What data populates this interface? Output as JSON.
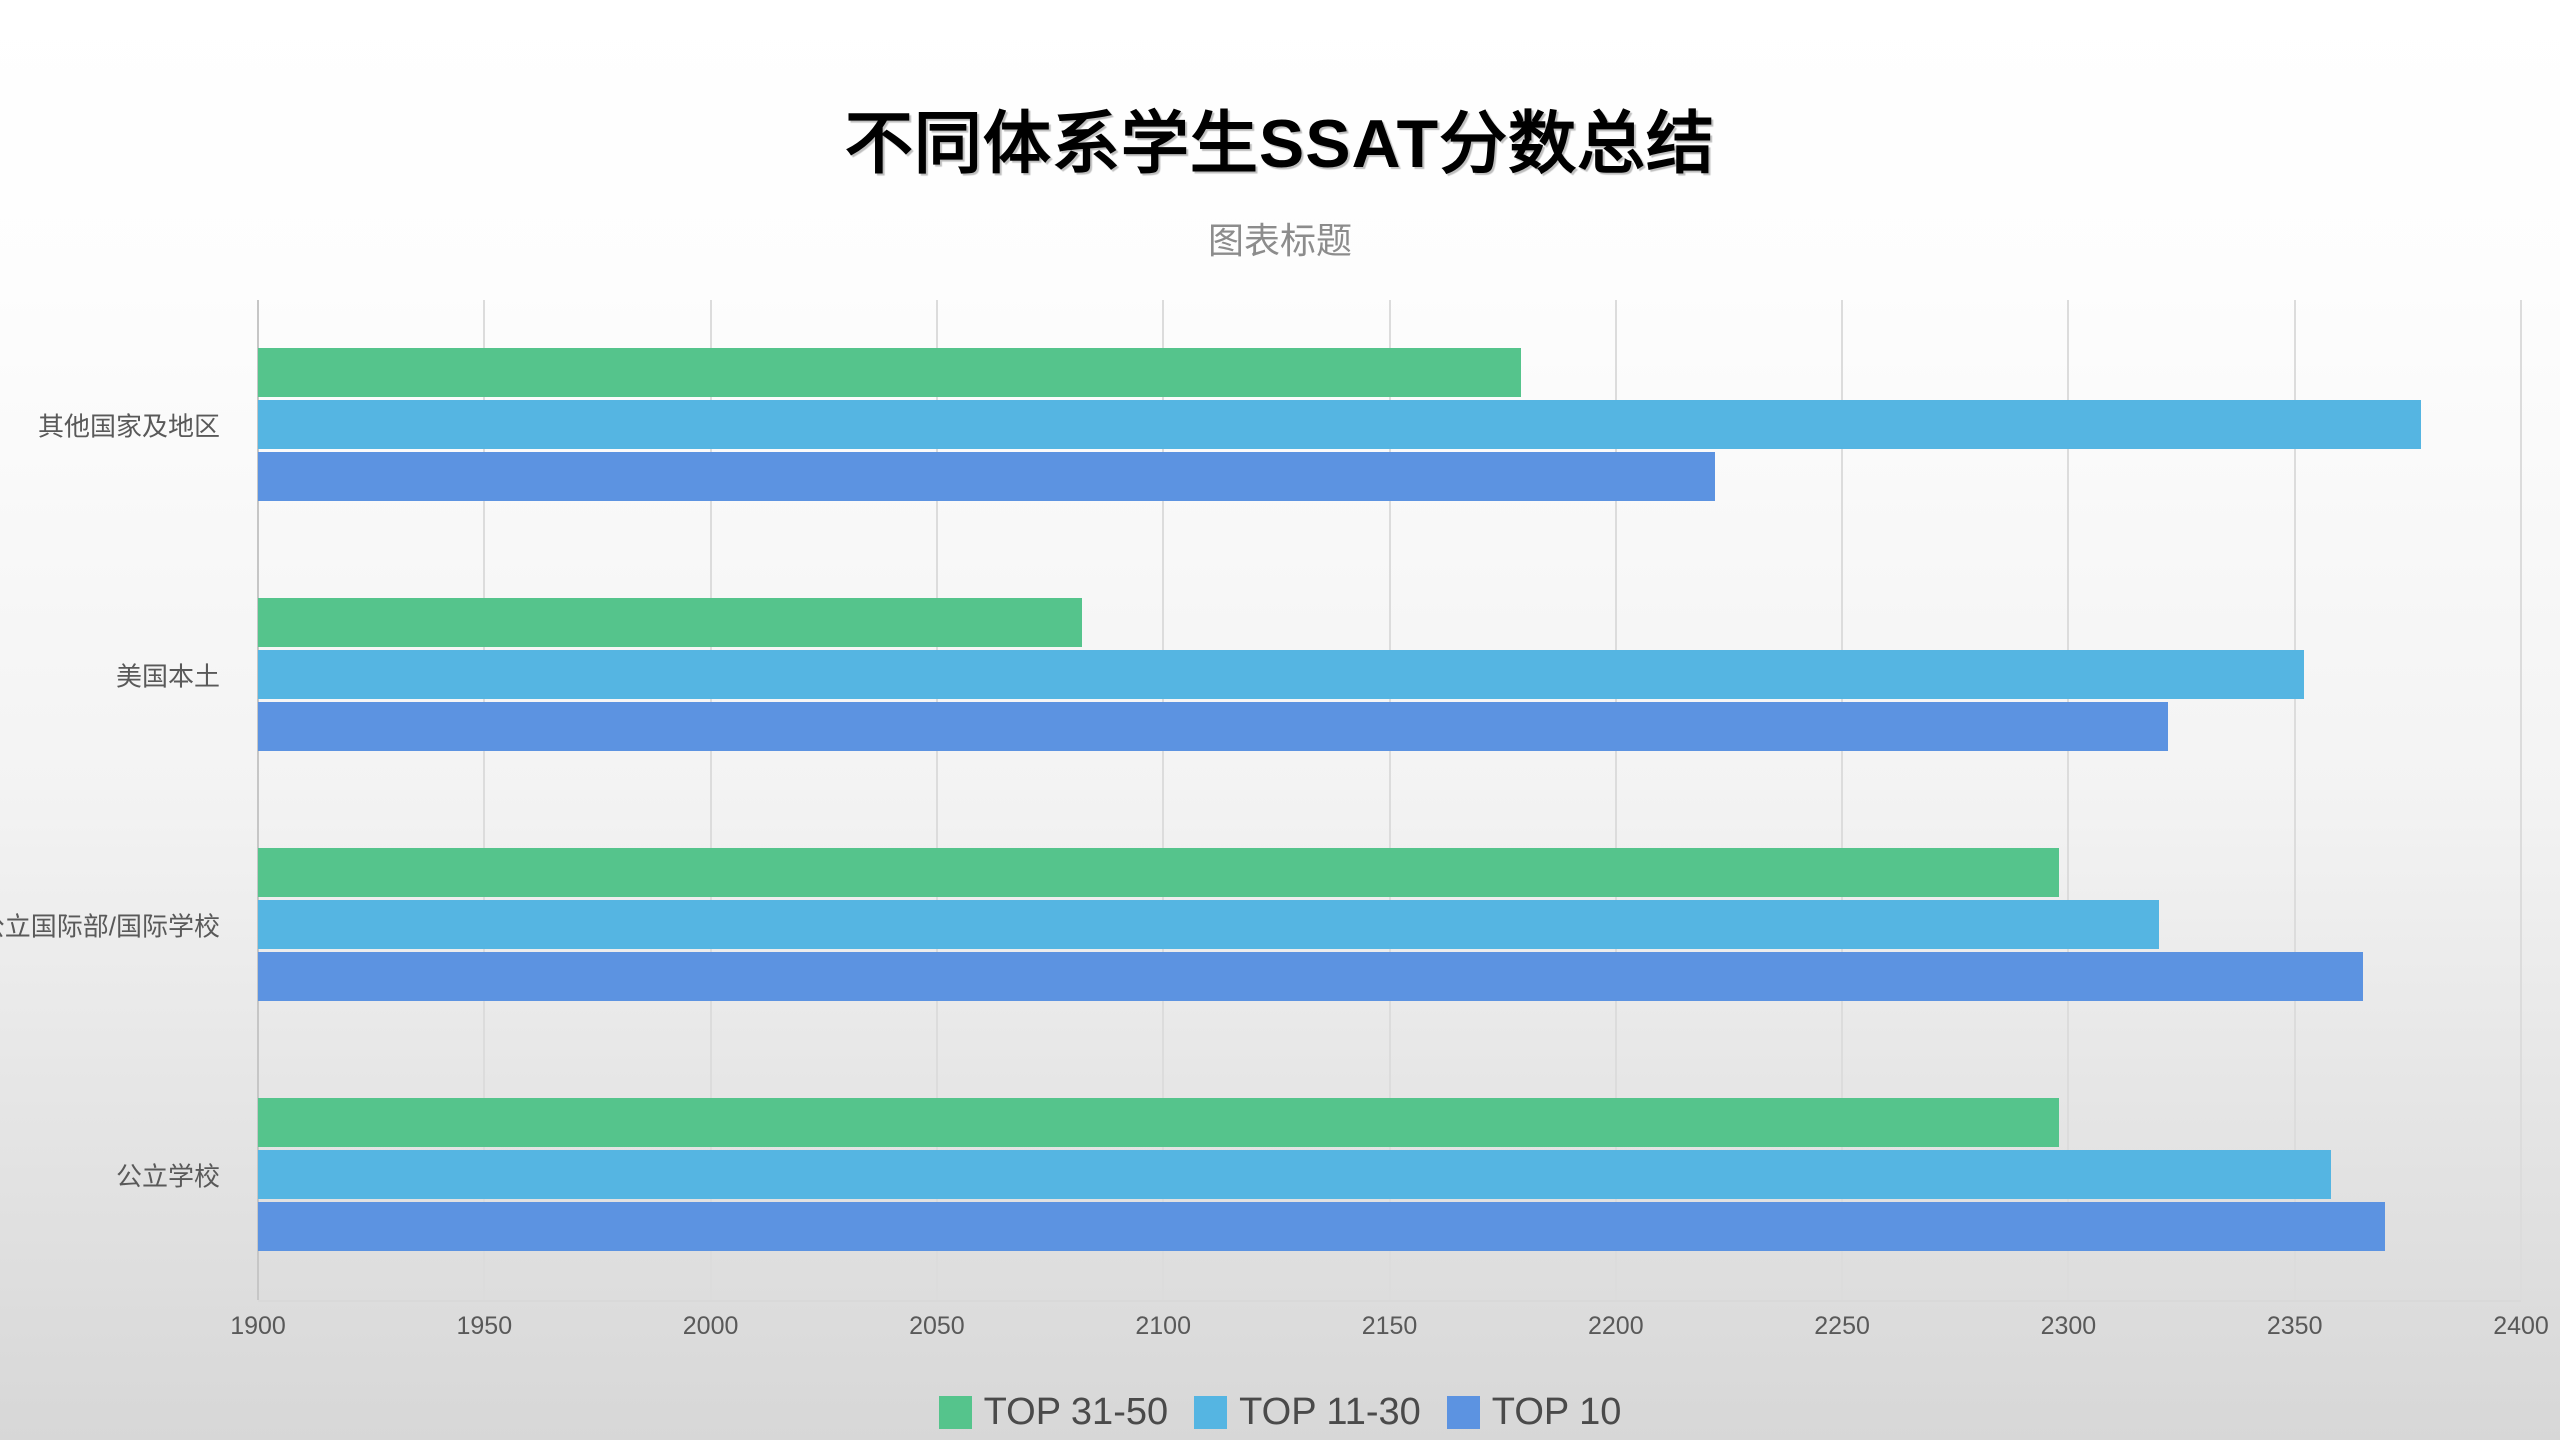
{
  "header": {
    "title": "不同体系学生SSAT分数总结",
    "subtitle": "图表标题"
  },
  "chart_data": {
    "type": "bar",
    "orientation": "horizontal",
    "title": "不同体系学生SSAT分数总结",
    "subtitle": "图表标题",
    "categories_top_to_bottom": [
      "其他国家及地区",
      "美国本土",
      "公立国际部/国际学校",
      "公立学校"
    ],
    "series": [
      {
        "name": "TOP 31-50",
        "color": "#55c48c",
        "values": [
          2179,
          2082,
          2298,
          2298
        ]
      },
      {
        "name": "TOP 11-30",
        "color": "#55b5e2",
        "values": [
          2378,
          2352,
          2320,
          2358
        ]
      },
      {
        "name": "TOP 10",
        "color": "#5c93e1",
        "values": [
          2222,
          2322,
          2365,
          2370
        ]
      }
    ],
    "bar_order_top_to_bottom": [
      "TOP 31-50",
      "TOP 11-30",
      "TOP 10"
    ],
    "xlim": [
      1900,
      2400
    ],
    "xticks": [
      1900,
      1950,
      2000,
      2050,
      2100,
      2150,
      2200,
      2250,
      2300,
      2350,
      2400
    ],
    "grid": "vertical-only",
    "legend_position": "bottom-center",
    "colors": {
      "gridline": "#dcdcdc",
      "axis_line": "#c6c6c6",
      "tick_text": "#595959",
      "category_text": "#595959",
      "legend_text": "#4a4a4a",
      "subtitle_text": "#8c8c8c",
      "title_text": "#000000"
    }
  }
}
